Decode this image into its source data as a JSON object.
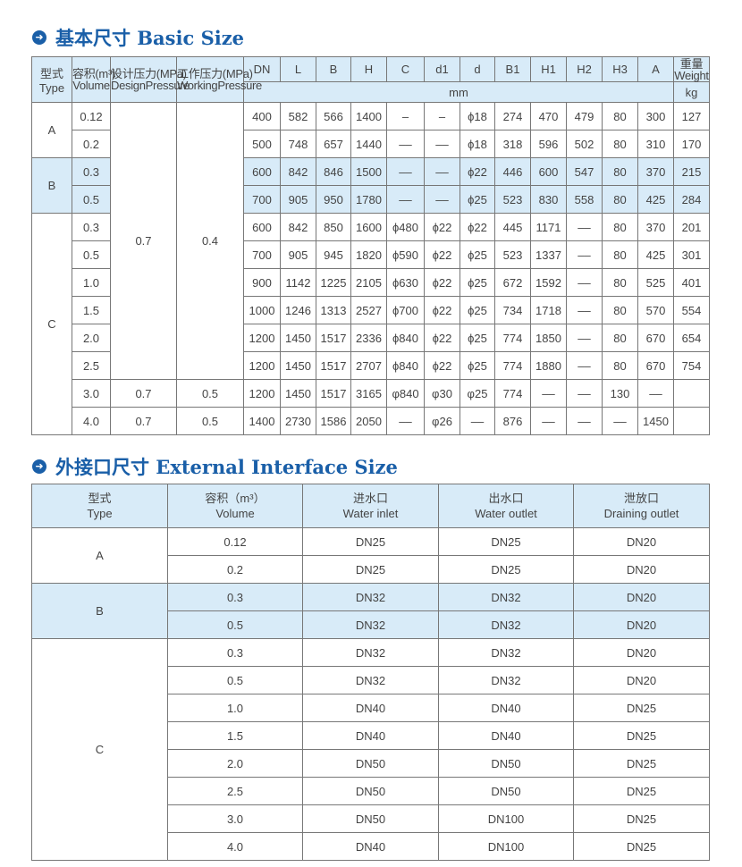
{
  "section1": {
    "icon": "arrow-right-circle-icon",
    "title": "基本尺寸 Basic Size"
  },
  "section2": {
    "icon": "arrow-right-circle-icon",
    "title": "外接口尺寸 External Interface Size"
  },
  "basic": {
    "headers": {
      "type_cn": "型式",
      "type_en": "Type",
      "volume_cn": "容积(m³)",
      "volume_en": "Volume",
      "design_cn": "设计压力(MPa)",
      "design_en": "DesignPressure",
      "working_cn": "工作压力(MPa)",
      "working_en": "WorkingPressure",
      "dims": [
        "DN",
        "L",
        "B",
        "H",
        "C",
        "d1",
        "d",
        "B1",
        "H1",
        "H2",
        "H3",
        "A"
      ],
      "weight_cn": "重量",
      "weight_en": "Weight",
      "mm": "mm",
      "kg": "kg"
    },
    "types": [
      {
        "label": "A",
        "rows": 2
      },
      {
        "label": "B",
        "rows": 2
      },
      {
        "label": "C",
        "rows": 8
      }
    ],
    "design_merged": "0.7",
    "working_merged": "0.4",
    "rows": [
      {
        "volume": "0.12",
        "vals": [
          "400",
          "582",
          "566",
          "1400",
          "–",
          "–",
          "ϕ18",
          "274",
          "470",
          "479",
          "80",
          "300",
          "127"
        ]
      },
      {
        "volume": "0.2",
        "vals": [
          "500",
          "748",
          "657",
          "1440",
          "––",
          "––",
          "ϕ18",
          "318",
          "596",
          "502",
          "80",
          "310",
          "170"
        ]
      },
      {
        "volume": "0.3",
        "vals": [
          "600",
          "842",
          "846",
          "1500",
          "––",
          "––",
          "ϕ22",
          "446",
          "600",
          "547",
          "80",
          "370",
          "215"
        ]
      },
      {
        "volume": "0.5",
        "vals": [
          "700",
          "905",
          "950",
          "1780",
          "––",
          "––",
          "ϕ25",
          "523",
          "830",
          "558",
          "80",
          "425",
          "284"
        ]
      },
      {
        "volume": "0.3",
        "vals": [
          "600",
          "842",
          "850",
          "1600",
          "ϕ480",
          "ϕ22",
          "ϕ22",
          "445",
          "1171",
          "––",
          "80",
          "370",
          "201"
        ]
      },
      {
        "volume": "0.5",
        "vals": [
          "700",
          "905",
          "945",
          "1820",
          "ϕ590",
          "ϕ22",
          "ϕ25",
          "523",
          "1337",
          "––",
          "80",
          "425",
          "301"
        ]
      },
      {
        "volume": "1.0",
        "vals": [
          "900",
          "1142",
          "1225",
          "2105",
          "ϕ630",
          "ϕ22",
          "ϕ25",
          "672",
          "1592",
          "––",
          "80",
          "525",
          "401"
        ]
      },
      {
        "volume": "1.5",
        "vals": [
          "1000",
          "1246",
          "1313",
          "2527",
          "ϕ700",
          "ϕ22",
          "ϕ25",
          "734",
          "1718",
          "––",
          "80",
          "570",
          "554"
        ]
      },
      {
        "volume": "2.0",
        "vals": [
          "1200",
          "1450",
          "1517",
          "2336",
          "ϕ840",
          "ϕ22",
          "ϕ25",
          "774",
          "1850",
          "––",
          "80",
          "670",
          "654"
        ]
      },
      {
        "volume": "2.5",
        "vals": [
          "1200",
          "1450",
          "1517",
          "2707",
          "ϕ840",
          "ϕ22",
          "ϕ25",
          "774",
          "1880",
          "––",
          "80",
          "670",
          "754"
        ]
      },
      {
        "volume": "3.0",
        "design": "0.7",
        "working": "0.5",
        "vals": [
          "1200",
          "1450",
          "1517",
          "3165",
          "φ840",
          "φ30",
          "φ25",
          "774",
          "––",
          "––",
          "130",
          "––",
          ""
        ]
      },
      {
        "volume": "4.0",
        "design": "0.7",
        "working": "0.5",
        "vals": [
          "1400",
          "2730",
          "1586",
          "2050",
          "––",
          "φ26",
          "––",
          "876",
          "––",
          "––",
          "––",
          "1450",
          ""
        ]
      }
    ]
  },
  "interface": {
    "headers": [
      [
        "型式",
        "Type"
      ],
      [
        "容积（m³）",
        "Volume"
      ],
      [
        "进水口",
        "Water inlet"
      ],
      [
        "出水口",
        "Water outlet"
      ],
      [
        "泄放口",
        "Draining outlet"
      ]
    ],
    "types": [
      {
        "label": "A",
        "rows": 2
      },
      {
        "label": "B",
        "rows": 2
      },
      {
        "label": "C",
        "rows": 8
      }
    ],
    "rows": [
      [
        "0.12",
        "DN25",
        "DN25",
        "DN20"
      ],
      [
        "0.2",
        "DN25",
        "DN25",
        "DN20"
      ],
      [
        "0.3",
        "DN32",
        "DN32",
        "DN20"
      ],
      [
        "0.5",
        "DN32",
        "DN32",
        "DN20"
      ],
      [
        "0.3",
        "DN32",
        "DN32",
        "DN20"
      ],
      [
        "0.5",
        "DN32",
        "DN32",
        "DN20"
      ],
      [
        "1.0",
        "DN40",
        "DN40",
        "DN25"
      ],
      [
        "1.5",
        "DN40",
        "DN40",
        "DN25"
      ],
      [
        "2.0",
        "DN50",
        "DN50",
        "DN25"
      ],
      [
        "2.5",
        "DN50",
        "DN50",
        "DN25"
      ],
      [
        "3.0",
        "DN50",
        "DN100",
        "DN25"
      ],
      [
        "4.0",
        "DN40",
        "DN100",
        "DN25"
      ]
    ]
  },
  "colors": {
    "title": "#1a5fa8",
    "header_bg": "#d8ebf8",
    "highlight_row": "#d8ebf8"
  }
}
